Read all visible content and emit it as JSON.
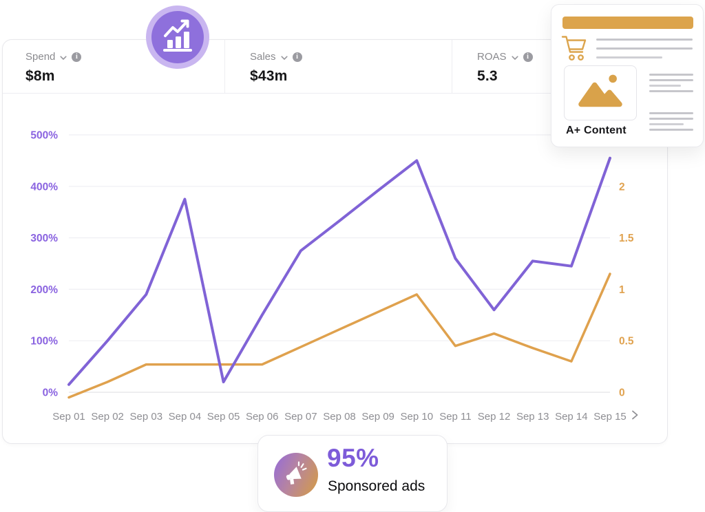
{
  "metrics": [
    {
      "label": "Spend",
      "value": "$8m"
    },
    {
      "label": "Sales",
      "value": "$43m"
    },
    {
      "label": "ROAS",
      "value": "5.3"
    }
  ],
  "icons": {
    "info_glyph": "i"
  },
  "aplus_card": {
    "caption": "A+ Content"
  },
  "sponsored_card": {
    "percent": "95%",
    "label": "Sponsored ads"
  },
  "chart_data": {
    "type": "line",
    "x": [
      "Sep 01",
      "Sep 02",
      "Sep 03",
      "Sep 04",
      "Sep 05",
      "Sep 06",
      "Sep 07",
      "Sep 08",
      "Sep 09",
      "Sep 10",
      "Sep 11",
      "Sep 12",
      "Sep 13",
      "Sep 14",
      "Sep 15"
    ],
    "series": [
      {
        "name": "orange-ratio-series",
        "axis": "right",
        "color": "#DFA14D",
        "stroke_width": 3.5,
        "values": [
          -0.05,
          0.1,
          0.27,
          0.27,
          0.27,
          0.27,
          0.44,
          0.61,
          0.78,
          0.95,
          0.45,
          0.57,
          0.43,
          0.3,
          1.15
        ]
      },
      {
        "name": "purple-percent-series",
        "axis": "left",
        "color": "#8063D6",
        "stroke_width": 4,
        "values": [
          15,
          100,
          190,
          375,
          20,
          150,
          275,
          333,
          392,
          450,
          260,
          160,
          255,
          245,
          455
        ]
      }
    ],
    "left_axis": {
      "ticks": [
        "0%",
        "100%",
        "200%",
        "300%",
        "400%",
        "500%"
      ],
      "min": 0,
      "max": 500,
      "color": "#8A63E0"
    },
    "right_axis": {
      "ticks": [
        "0",
        "0.5",
        "1",
        "1.5",
        "2"
      ],
      "min": 0,
      "max": 2.5,
      "color": "#E0A24F"
    },
    "x_axis_color": "#8E8E93",
    "grid": true,
    "legend": "none",
    "title": ""
  },
  "colors": {
    "grid": "#EFEFF3",
    "grid_dark": "#E4E4E8",
    "banner_gold": "#DCA44C",
    "icon_gold": "#D9A24A",
    "badge_ring": "#C9B6F0",
    "badge_inner": "#8E70DC",
    "percent_purple": "#7D5BD9",
    "placeholder_gray": "#C6C6CB"
  }
}
